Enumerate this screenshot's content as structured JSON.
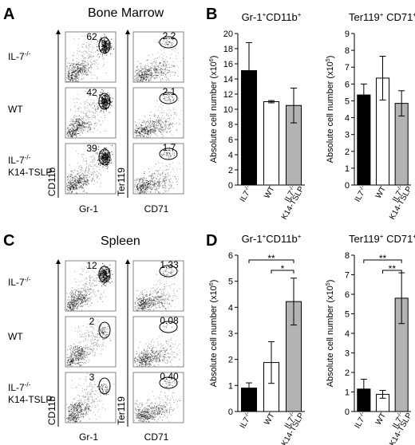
{
  "panel_letters": {
    "a": "A",
    "b": "B",
    "c": "C",
    "d": "D"
  },
  "flow": {
    "bm_title": "Bone Marrow",
    "spleen_title": "Spleen",
    "row_labels": [
      {
        "pre": "IL-7",
        "sup": "-/-",
        "line2": ""
      },
      {
        "pre": "WT",
        "sup": "",
        "line2": ""
      },
      {
        "pre": "IL-7",
        "sup": "-/-",
        "line2": "K14-TSLP"
      }
    ],
    "axis_labels": {
      "cd11b": "CD11b",
      "gr1": "Gr-1",
      "ter119": "Ter119",
      "cd71": "CD71"
    },
    "bm_gr1_pct": [
      "62",
      "42",
      "39"
    ],
    "bm_ter_pct": [
      "2.2",
      "2.1",
      "1.7"
    ],
    "sp_gr1_pct": [
      "12",
      "2",
      "3"
    ],
    "sp_ter_pct": [
      "1.33",
      "0.08",
      "0.40"
    ]
  },
  "chart_data": [
    {
      "type": "bar",
      "panel": "B",
      "title": "Gr-1⁺CD11b⁺",
      "ylabel": "Absolute cell number (x10⁶)",
      "ylim": [
        0,
        20
      ],
      "yticks": [
        0,
        2,
        4,
        6,
        8,
        10,
        12,
        14,
        16,
        18,
        20
      ],
      "categories": [
        "IL7-/-",
        "WT",
        "IL7-/- K14-TSLP"
      ],
      "values": [
        15.1,
        11.0,
        10.5
      ],
      "errors": [
        3.7,
        0.15,
        2.3
      ],
      "colors": [
        "#000000",
        "#ffffff",
        "#b3b3b3"
      ],
      "significance": []
    },
    {
      "type": "bar",
      "panel": "B",
      "title": "Ter119⁺ CD71⁺",
      "ylabel": "Absolute cell number (x10⁵)",
      "ylim": [
        0,
        9
      ],
      "yticks": [
        0,
        1,
        2,
        3,
        4,
        5,
        6,
        7,
        8,
        9
      ],
      "categories": [
        "IL7-/-",
        "WT",
        "IL7-/- K14-TSLP"
      ],
      "values": [
        5.35,
        6.35,
        4.85
      ],
      "errors": [
        0.65,
        1.3,
        0.75
      ],
      "colors": [
        "#000000",
        "#ffffff",
        "#b3b3b3"
      ],
      "significance": []
    },
    {
      "type": "bar",
      "panel": "D",
      "title": "Gr-1⁺CD11b⁺",
      "ylabel": "Absolute cell number (x10⁶)",
      "ylim": [
        0,
        6
      ],
      "yticks": [
        0,
        1,
        2,
        3,
        4,
        5,
        6
      ],
      "categories": [
        "IL7-/-",
        "WT",
        "IL7-/- K14-TSLP"
      ],
      "values": [
        0.9,
        1.88,
        4.22
      ],
      "errors": [
        0.2,
        0.8,
        0.9
      ],
      "colors": [
        "#000000",
        "#ffffff",
        "#b3b3b3"
      ],
      "significance": [
        {
          "from": 0,
          "to": 2,
          "label": "**"
        },
        {
          "from": 1,
          "to": 2,
          "label": "*"
        }
      ]
    },
    {
      "type": "bar",
      "panel": "D",
      "title": "Ter119⁺ CD71⁺",
      "ylabel": "Absolute cell number (x10⁵)",
      "ylim": [
        0,
        8
      ],
      "yticks": [
        0,
        1,
        2,
        3,
        4,
        5,
        6,
        7,
        8
      ],
      "categories": [
        "IL7-/-",
        "WT",
        "IL7-/- K14-TSLP"
      ],
      "values": [
        1.15,
        0.88,
        5.8
      ],
      "errors": [
        0.5,
        0.2,
        1.3
      ],
      "colors": [
        "#000000",
        "#ffffff",
        "#b3b3b3"
      ],
      "significance": [
        {
          "from": 0,
          "to": 2,
          "label": "**"
        },
        {
          "from": 1,
          "to": 2,
          "label": "**"
        }
      ]
    }
  ]
}
